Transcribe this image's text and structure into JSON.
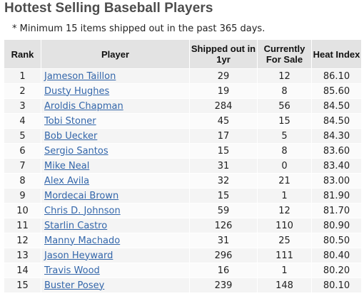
{
  "title": "Hottest Selling Baseball Players",
  "note": "* Minimum 15 items shipped out in the past 365 days.",
  "table": {
    "headers": {
      "rank": "Rank",
      "player": "Player",
      "shipped": "Shipped out in 1yr",
      "for_sale": "Currently For Sale",
      "heat": "Heat Index"
    },
    "rows": [
      {
        "rank": "1",
        "player": "Jameson Taillon",
        "shipped": "29",
        "for_sale": "12",
        "heat": "86.10"
      },
      {
        "rank": "2",
        "player": "Dusty Hughes",
        "shipped": "19",
        "for_sale": "8",
        "heat": "85.60"
      },
      {
        "rank": "3",
        "player": "Aroldis Chapman",
        "shipped": "284",
        "for_sale": "56",
        "heat": "84.50"
      },
      {
        "rank": "4",
        "player": "Tobi Stoner",
        "shipped": "45",
        "for_sale": "15",
        "heat": "84.50"
      },
      {
        "rank": "5",
        "player": "Bob Uecker",
        "shipped": "17",
        "for_sale": "5",
        "heat": "84.30"
      },
      {
        "rank": "6",
        "player": "Sergio Santos",
        "shipped": "15",
        "for_sale": "8",
        "heat": "83.60"
      },
      {
        "rank": "7",
        "player": "Mike Neal",
        "shipped": "31",
        "for_sale": "0",
        "heat": "83.40"
      },
      {
        "rank": "8",
        "player": "Alex Avila",
        "shipped": "32",
        "for_sale": "21",
        "heat": "83.00"
      },
      {
        "rank": "9",
        "player": "Mordecai Brown",
        "shipped": "15",
        "for_sale": "1",
        "heat": "81.90"
      },
      {
        "rank": "10",
        "player": "Chris D. Johnson",
        "shipped": "59",
        "for_sale": "12",
        "heat": "81.70"
      },
      {
        "rank": "11",
        "player": "Starlin Castro",
        "shipped": "126",
        "for_sale": "110",
        "heat": "80.90"
      },
      {
        "rank": "12",
        "player": "Manny Machado",
        "shipped": "31",
        "for_sale": "25",
        "heat": "80.50"
      },
      {
        "rank": "13",
        "player": "Jason Heyward",
        "shipped": "296",
        "for_sale": "111",
        "heat": "80.40"
      },
      {
        "rank": "14",
        "player": "Travis Wood",
        "shipped": "16",
        "for_sale": "1",
        "heat": "80.20"
      },
      {
        "rank": "15",
        "player": "Buster Posey",
        "shipped": "239",
        "for_sale": "148",
        "heat": "80.10"
      }
    ]
  }
}
